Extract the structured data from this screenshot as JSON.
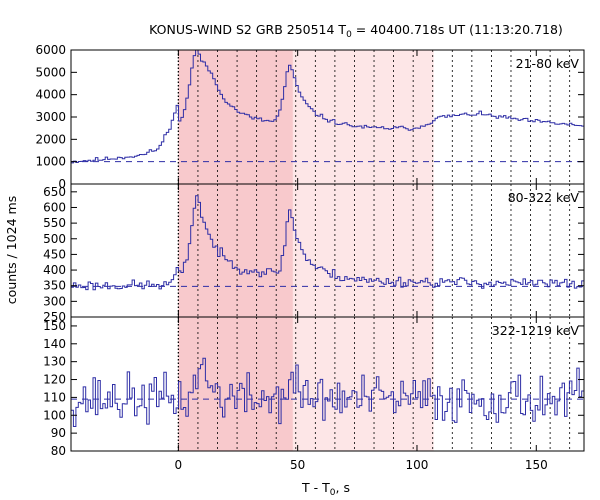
{
  "chart_data": {
    "type": "line",
    "title_main": "KONUS-WIND S2 GRB 250514 T",
    "title_sub": "0",
    "title_rest": " = 40400.718s UT (11:13:20.718)",
    "xlabel_main": "T - T",
    "xlabel_sub": "0",
    "xlabel_rest": ", s",
    "ylabel": "counts / 1024 ms",
    "xlim": [
      -45,
      170
    ],
    "xticks": [
      0,
      50,
      100,
      150
    ],
    "bin_s": 1.024,
    "colors": {
      "curve": "#2e2ea6",
      "band_dark": "#f8c9cc",
      "band_light": "#fde6e7"
    },
    "shaded_intervals": [
      {
        "range": [
          0,
          48
        ],
        "shade": "dark"
      },
      {
        "range": [
          48,
          107
        ],
        "shade": "light"
      }
    ],
    "vertical_markers": [
      0,
      8.2,
      16.4,
      24.6,
      32.8,
      41,
      49.2,
      57.4,
      65.6,
      73.8,
      82,
      90.2,
      98.4,
      106.6,
      114.8,
      123,
      131.2,
      139.4,
      147.6,
      155.8,
      164
    ],
    "panels": [
      {
        "label": "21-80 keV",
        "ylim": [
          0,
          6000
        ],
        "yticks": [
          0,
          1000,
          2000,
          3000,
          4000,
          5000,
          6000
        ],
        "background_level": 1000,
        "curve": {
          "baseline": 1000,
          "pre_rise": [
            [
              -45,
              1000
            ],
            [
              -30,
              1120
            ],
            [
              -15,
              1300
            ],
            [
              -8,
              1600
            ],
            [
              -3,
              2700
            ],
            [
              0,
              3600
            ]
          ],
          "pulses": [
            {
              "t": 8,
              "amp": 3300,
              "rise": 3,
              "decay": 7
            },
            {
              "t": 47,
              "amp": 2600,
              "rise": 2.5,
              "decay": 6
            },
            {
              "t": 14,
              "amp": 900,
              "rise": 3,
              "decay": 12
            }
          ],
          "tail": [
            [
              0,
              1700
            ],
            [
              20,
              1600
            ],
            [
              60,
              1700
            ],
            [
              80,
              1500
            ],
            [
              100,
              1500
            ],
            [
              110,
              2000
            ],
            [
              125,
              2150
            ],
            [
              145,
              1850
            ],
            [
              170,
              1600
            ]
          ],
          "noise": 70,
          "seed": 11
        }
      },
      {
        "label": "80-322 keV",
        "ylim": [
          250,
          675
        ],
        "yticks": [
          250,
          300,
          350,
          400,
          450,
          500,
          550,
          600,
          650
        ],
        "background_level": 348,
        "curve": {
          "baseline": 350,
          "pre_rise": [
            [
              -45,
              350
            ],
            [
              -4,
              352
            ],
            [
              0,
              400
            ]
          ],
          "pulses": [
            {
              "t": 8,
              "amp": 250,
              "rise": 2.5,
              "decay": 7
            },
            {
              "t": 47,
              "amp": 205,
              "rise": 2,
              "decay": 5
            }
          ],
          "tail": [
            [
              0,
              35
            ],
            [
              30,
              40
            ],
            [
              60,
              35
            ],
            [
              80,
              15
            ],
            [
              170,
              5
            ]
          ],
          "noise": 12,
          "seed": 23
        }
      },
      {
        "label": "322-1219 keV",
        "ylim": [
          80,
          155
        ],
        "yticks": [
          80,
          90,
          100,
          110,
          120,
          130,
          140,
          150
        ],
        "background_level": 109,
        "curve": {
          "baseline": 109,
          "pre_rise": [],
          "pulses": [
            {
              "t": 9,
              "amp": 22,
              "rise": 1.5,
              "decay": 4
            },
            {
              "t": 47,
              "amp": 10,
              "rise": 2,
              "decay": 4
            }
          ],
          "tail": [],
          "noise": 10,
          "seed": 37
        }
      }
    ]
  }
}
